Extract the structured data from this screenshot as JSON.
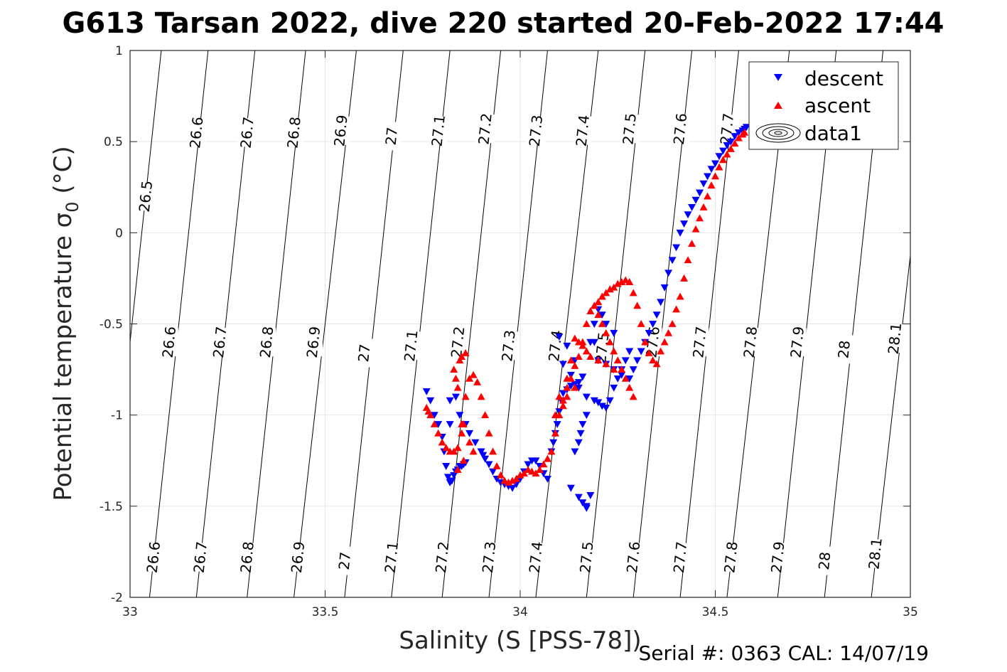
{
  "chart_data": {
    "type": "scatter",
    "title": "G613 Tarsan 2022, dive 220 started 20-Feb-2022 17:44",
    "xlabel": "Salinity (S [PSS-78])",
    "ylabel": "Potential temperature σ",
    "ylabel_sub": "0",
    "ylabel_unit": " (°C)",
    "footer": "Serial #: 0363  CAL: 14/07/19",
    "xlim": [
      33,
      35
    ],
    "ylim": [
      -2,
      1
    ],
    "xticks": [
      33,
      33.5,
      34,
      34.5,
      35
    ],
    "xtick_labels": [
      "33",
      "33.5",
      "34",
      "34.5",
      "35"
    ],
    "yticks": [
      -2,
      -1.5,
      -1,
      -0.5,
      0,
      0.5,
      1
    ],
    "ytick_labels": [
      "-2",
      "-1.5",
      "-1",
      "-0.5",
      "0",
      "0.5",
      "1"
    ],
    "grid": true,
    "legend_position": "top-right",
    "legend": [
      {
        "label": "descent",
        "marker": "triangle-down",
        "color": "#0000ff"
      },
      {
        "label": "ascent",
        "marker": "triangle-up",
        "color": "#ff0000"
      },
      {
        "label": "data1",
        "marker": "contour",
        "color": "#000000"
      }
    ],
    "contours": {
      "levels": [
        26.5,
        26.6,
        26.7,
        26.8,
        26.9,
        27,
        27.1,
        27.2,
        27.3,
        27.4,
        27.5,
        27.6,
        27.7,
        27.8,
        27.9,
        28,
        28.1
      ],
      "label_texts": [
        "26.5",
        "26.6",
        "26.7",
        "26.8",
        "26.9",
        "27",
        "27.1",
        "27.2",
        "27.3",
        "27.4",
        "27.5",
        "27.6",
        "27.7",
        "27.8",
        "27.9",
        "28",
        "28.1"
      ],
      "bottom_salinity": [
        null,
        33.05,
        33.17,
        33.3,
        33.42,
        33.55,
        33.67,
        33.8,
        33.92,
        34.04,
        34.17,
        34.29,
        34.41,
        34.53,
        34.66,
        34.78,
        34.9
      ],
      "top_salinity": [
        33.08,
        33.2,
        33.32,
        33.45,
        33.58,
        33.7,
        33.82,
        33.95,
        34.07,
        34.2,
        34.32,
        34.44,
        34.56,
        34.69,
        34.81,
        34.93,
        35.06
      ],
      "labels_high": [
        "26.6",
        "26.7",
        "26.8",
        "26.9",
        "27",
        "27.1",
        "27.2",
        "27.3",
        "27.4",
        "27.5",
        "27.6",
        "27.7"
      ],
      "labels_high_salinity": [
        33.17,
        33.3,
        33.42,
        33.54,
        33.67,
        33.79,
        33.91,
        34.04,
        34.16,
        34.28,
        34.41,
        34.53
      ],
      "labels_high_temp": [
        0.55,
        0.55,
        0.55,
        0.56,
        0.53,
        0.56,
        0.57,
        0.56,
        0.56,
        0.57,
        0.57,
        0.57
      ],
      "labels_mid": [
        "26.6",
        "26.7",
        "26.8",
        "26.9",
        "27",
        "27.1",
        "27.2",
        "27.3",
        "27.4",
        "27.5",
        "27.6",
        "27.7",
        "27.8",
        "27.9",
        "28",
        "28.1"
      ],
      "labels_mid_salinity": [
        33.1,
        33.23,
        33.35,
        33.47,
        33.6,
        33.72,
        33.84,
        33.97,
        34.09,
        34.21,
        34.34,
        34.46,
        34.59,
        34.71,
        34.83,
        34.96
      ],
      "labels_mid_temp": [
        -0.6,
        -0.6,
        -0.6,
        -0.6,
        -0.66,
        -0.62,
        -0.6,
        -0.62,
        -0.62,
        -0.63,
        -0.6,
        -0.6,
        -0.6,
        -0.6,
        -0.64,
        -0.58
      ],
      "labels_low": [
        "26.6",
        "26.7",
        "26.8",
        "26.9",
        "27",
        "27.1",
        "27.2",
        "27.3",
        "27.4",
        "27.5",
        "27.6",
        "27.7",
        "27.8",
        "27.9",
        "28",
        "28.1"
      ],
      "labels_low_salinity": [
        33.06,
        33.18,
        33.3,
        33.43,
        33.55,
        33.67,
        33.8,
        33.92,
        34.04,
        34.17,
        34.29,
        34.41,
        34.54,
        34.66,
        34.78,
        34.91
      ],
      "labels_low_temp": [
        -1.78,
        -1.78,
        -1.78,
        -1.78,
        -1.8,
        -1.78,
        -1.78,
        -1.78,
        -1.78,
        -1.78,
        -1.78,
        -1.78,
        -1.78,
        -1.78,
        -1.8,
        -1.76
      ],
      "label_26_5_salinity": 33.04,
      "label_26_5_temp": 0.2
    },
    "series": [
      {
        "name": "descent",
        "color": "#0000ff",
        "marker": "triangle-down",
        "x": [
          33.76,
          33.77,
          33.78,
          33.79,
          33.8,
          33.805,
          33.81,
          33.815,
          33.82,
          33.825,
          33.83,
          33.835,
          33.84,
          33.845,
          33.85,
          33.855,
          33.86,
          33.835,
          33.82,
          33.82,
          33.845,
          33.86,
          33.87,
          33.885,
          33.9,
          33.905,
          33.91,
          33.92,
          33.93,
          33.94,
          33.95,
          33.96,
          33.97,
          33.98,
          33.99,
          34.0,
          34.01,
          34.02,
          34.03,
          34.04,
          34.05,
          34.06,
          34.07,
          34.08,
          34.085,
          34.09,
          34.095,
          34.1,
          34.105,
          34.11,
          34.12,
          34.13,
          34.14,
          34.15,
          34.16,
          34.14,
          34.12,
          34.1,
          34.11,
          34.13,
          34.15,
          34.17,
          34.19,
          34.2,
          34.21,
          34.22,
          34.23,
          34.24,
          34.25,
          34.26,
          34.27,
          34.28,
          34.24,
          34.22,
          34.21,
          34.2,
          34.19,
          34.18,
          34.17,
          34.16,
          34.155,
          34.15,
          34.14,
          34.13,
          34.15,
          34.17,
          34.17,
          34.16,
          34.18,
          34.19,
          34.2,
          34.22,
          34.24,
          34.26,
          34.28,
          34.29,
          34.3,
          34.31,
          34.32,
          34.33,
          34.34,
          34.35,
          34.36,
          34.37,
          34.38,
          34.39,
          34.4,
          34.41,
          34.42,
          34.43,
          34.44,
          34.45,
          34.46,
          34.47,
          34.48,
          34.49,
          34.5,
          34.51,
          34.52,
          34.53,
          34.54,
          34.55,
          34.56,
          34.57,
          34.575,
          34.58
        ],
        "y": [
          -0.87,
          -0.92,
          -1.0,
          -1.05,
          -1.12,
          -1.2,
          -1.28,
          -1.34,
          -1.37,
          -1.36,
          -1.33,
          -1.31,
          -1.3,
          -1.28,
          -1.28,
          -1.27,
          -1.26,
          -0.9,
          -0.92,
          -1.05,
          -1.0,
          -1.05,
          -1.1,
          -1.15,
          -1.2,
          -1.22,
          -1.24,
          -1.27,
          -1.31,
          -1.35,
          -1.37,
          -1.38,
          -1.39,
          -1.4,
          -1.38,
          -1.35,
          -1.31,
          -1.27,
          -1.25,
          -1.25,
          -1.28,
          -1.32,
          -1.35,
          -1.2,
          -1.15,
          -1.1,
          -1.05,
          -0.98,
          -0.92,
          -0.88,
          -0.86,
          -0.84,
          -0.83,
          -0.82,
          -0.79,
          -0.7,
          -0.62,
          -0.57,
          -0.72,
          -0.78,
          -0.85,
          -0.9,
          -0.92,
          -0.93,
          -0.95,
          -0.96,
          -0.92,
          -0.85,
          -0.8,
          -0.75,
          -0.7,
          -0.65,
          -0.55,
          -0.5,
          -0.45,
          -0.42,
          -0.5,
          -0.6,
          -1.0,
          -1.05,
          -1.1,
          -1.15,
          -1.2,
          -1.4,
          -1.45,
          -1.5,
          -1.51,
          -1.48,
          -1.44,
          -0.6,
          -0.7,
          -0.72,
          -0.75,
          -0.78,
          -0.8,
          -0.75,
          -0.7,
          -0.65,
          -0.6,
          -0.55,
          -0.5,
          -0.45,
          -0.38,
          -0.3,
          -0.22,
          -0.15,
          -0.08,
          0.0,
          0.05,
          0.1,
          0.14,
          0.18,
          0.22,
          0.27,
          0.31,
          0.35,
          0.38,
          0.42,
          0.45,
          0.48,
          0.5,
          0.53,
          0.55,
          0.56,
          0.57,
          0.58
        ]
      },
      {
        "name": "ascent",
        "color": "#ff0000",
        "marker": "triangle-up",
        "x": [
          33.76,
          33.765,
          33.77,
          33.78,
          33.79,
          33.8,
          33.81,
          33.82,
          33.83,
          33.84,
          33.85,
          33.86,
          33.87,
          33.88,
          33.89,
          33.9,
          33.91,
          33.92,
          33.93,
          33.94,
          33.95,
          33.96,
          33.97,
          33.98,
          33.99,
          34.0,
          34.01,
          34.02,
          34.03,
          34.04,
          34.05,
          34.06,
          34.07,
          34.08,
          34.09,
          34.1,
          34.11,
          34.12,
          34.13,
          34.14,
          34.15,
          34.16,
          34.17,
          34.18,
          34.19,
          34.2,
          34.21,
          34.22,
          34.23,
          34.24,
          34.25,
          34.26,
          34.27,
          34.28,
          34.29,
          34.3,
          34.31,
          34.32,
          34.33,
          34.34,
          34.35,
          34.36,
          34.37,
          34.38,
          34.39,
          34.4,
          34.41,
          34.42,
          34.43,
          34.44,
          34.45,
          34.46,
          34.47,
          34.48,
          34.49,
          34.5,
          34.51,
          34.52,
          34.53,
          34.54,
          34.55,
          34.56,
          34.57,
          34.575,
          33.84,
          33.835,
          33.83,
          33.845,
          33.85,
          33.86,
          33.855,
          33.85,
          33.87,
          33.88,
          33.855,
          33.84,
          34.19,
          34.2,
          34.21,
          34.22,
          34.23,
          34.24,
          34.25,
          34.26,
          34.27,
          34.28,
          34.29,
          34.24,
          34.22,
          34.2,
          34.18,
          34.17,
          34.16,
          34.15,
          34.14,
          34.13,
          34.12,
          34.1,
          34.09,
          34.11,
          34.12,
          34.14
        ],
        "y": [
          -0.96,
          -0.98,
          -1.0,
          -1.05,
          -1.1,
          -1.15,
          -1.18,
          -1.2,
          -1.2,
          -1.18,
          -1.05,
          -0.9,
          -0.8,
          -0.78,
          -0.82,
          -0.9,
          -1.0,
          -1.1,
          -1.2,
          -1.28,
          -1.33,
          -1.36,
          -1.37,
          -1.36,
          -1.35,
          -1.33,
          -1.32,
          -1.3,
          -1.31,
          -1.32,
          -1.3,
          -1.27,
          -1.24,
          -1.2,
          -1.1,
          -1.0,
          -0.92,
          -0.85,
          -0.8,
          -0.73,
          -0.68,
          -0.6,
          -0.5,
          -0.43,
          -0.4,
          -0.38,
          -0.35,
          -0.33,
          -0.31,
          -0.3,
          -0.28,
          -0.27,
          -0.26,
          -0.27,
          -0.33,
          -0.4,
          -0.5,
          -0.6,
          -0.66,
          -0.7,
          -0.72,
          -0.65,
          -0.6,
          -0.55,
          -0.5,
          -0.42,
          -0.35,
          -0.25,
          -0.15,
          -0.06,
          0.02,
          0.08,
          0.14,
          0.2,
          0.26,
          0.31,
          0.36,
          0.4,
          0.43,
          0.46,
          0.49,
          0.52,
          0.54,
          0.55,
          -0.85,
          -0.8,
          -0.75,
          -0.7,
          -0.68,
          -0.66,
          -1.05,
          -1.1,
          -1.15,
          -1.2,
          -1.25,
          -1.3,
          -0.4,
          -0.45,
          -0.5,
          -0.55,
          -0.6,
          -0.65,
          -0.7,
          -0.75,
          -0.8,
          -0.85,
          -0.9,
          -0.75,
          -0.72,
          -0.7,
          -0.68,
          -0.65,
          -0.62,
          -0.6,
          -0.58,
          -0.7,
          -0.8,
          -0.9,
          -1.0,
          -0.95,
          -0.9,
          -0.85
        ]
      }
    ]
  }
}
